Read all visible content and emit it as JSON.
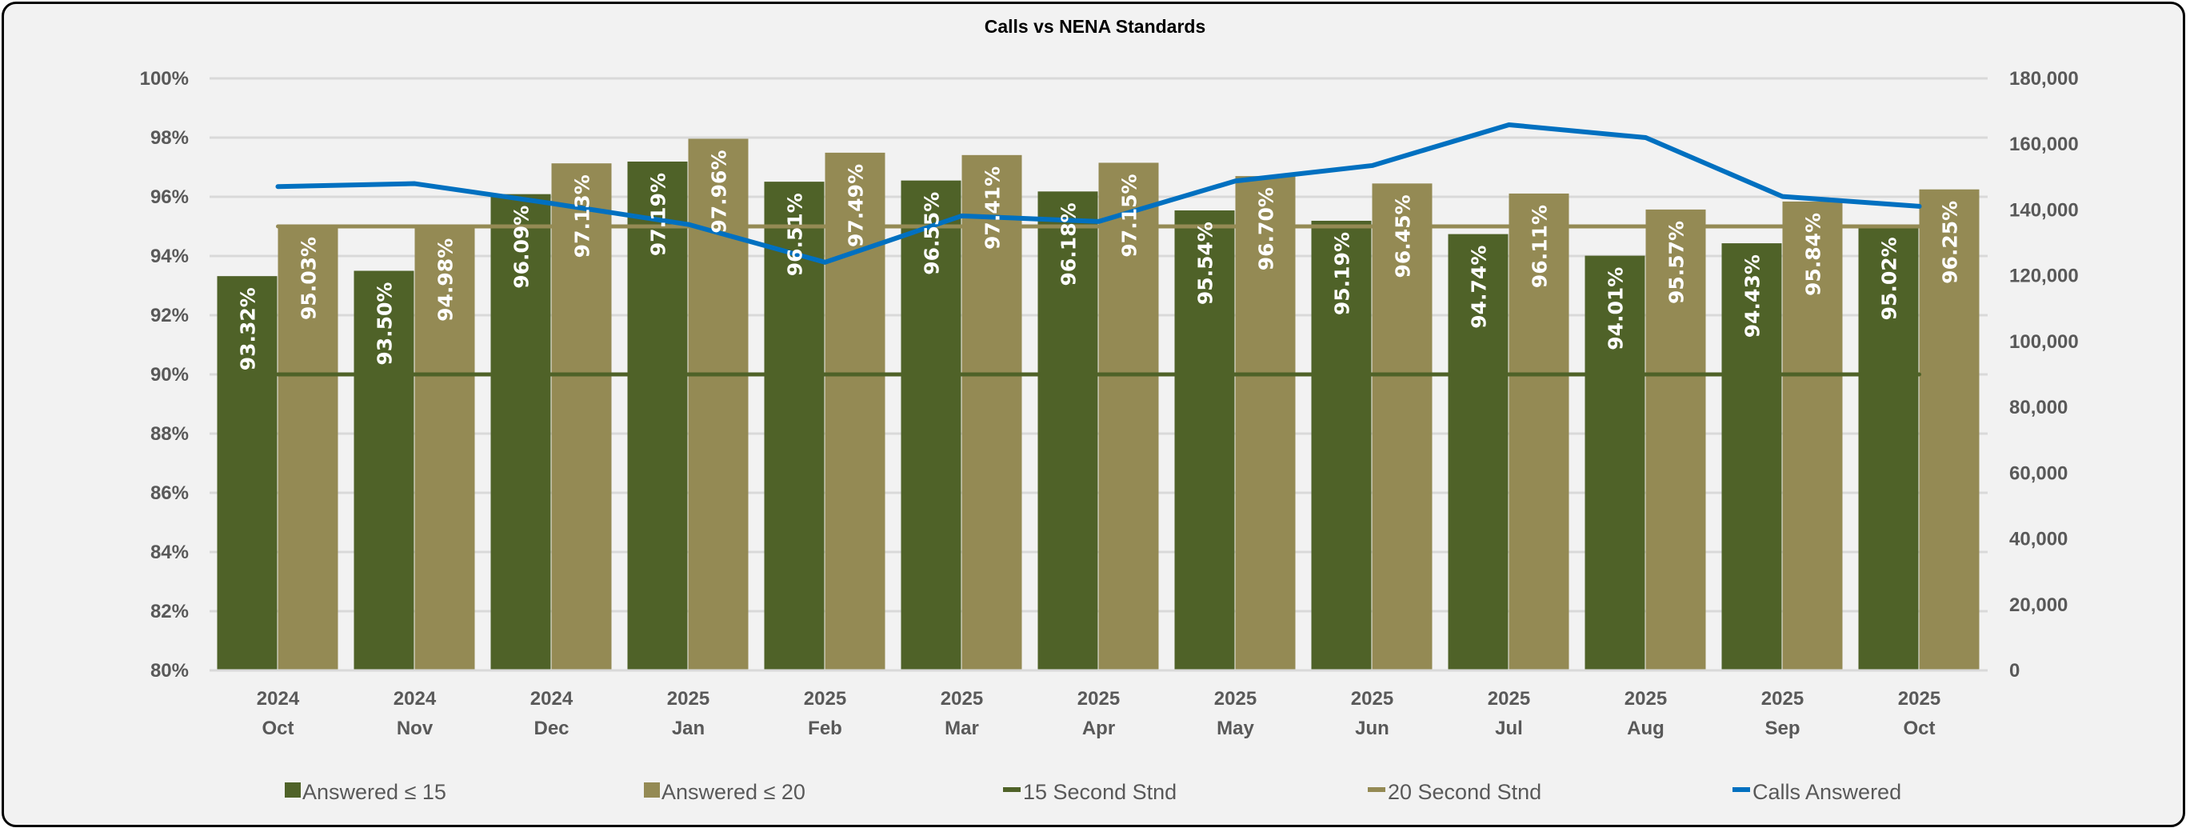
{
  "chart_data": {
    "type": "bar",
    "title": "Calls vs NENA Standards",
    "categories": [
      [
        "2024",
        "Oct"
      ],
      [
        "2024",
        "Nov"
      ],
      [
        "2024",
        "Dec"
      ],
      [
        "2025",
        "Jan"
      ],
      [
        "2025",
        "Feb"
      ],
      [
        "2025",
        "Mar"
      ],
      [
        "2025",
        "Apr"
      ],
      [
        "2025",
        "May"
      ],
      [
        "2025",
        "Jun"
      ],
      [
        "2025",
        "Jul"
      ],
      [
        "2025",
        "Aug"
      ],
      [
        "2025",
        "Sep"
      ],
      [
        "2025",
        "Oct"
      ]
    ],
    "y_left": {
      "min": 80,
      "max": 100,
      "step": 2,
      "tick_labels": [
        "80%",
        "82%",
        "84%",
        "86%",
        "88%",
        "90%",
        "92%",
        "94%",
        "96%",
        "98%",
        "100%"
      ]
    },
    "y_right": {
      "min": 0,
      "max": 180000,
      "step": 20000,
      "tick_labels": [
        "0",
        "20,000",
        "40,000",
        "60,000",
        "80,000",
        "100,000",
        "120,000",
        "140,000",
        "160,000",
        "180,000"
      ]
    },
    "grid": true,
    "legend_position": "bottom",
    "series": [
      {
        "name": "Answered ≤ 15",
        "type": "bar",
        "axis": "left",
        "color": "#4F6228",
        "values": [
          93.32,
          93.5,
          96.09,
          97.19,
          96.51,
          96.55,
          96.18,
          95.54,
          95.19,
          94.74,
          94.01,
          94.43,
          95.02
        ],
        "labels": [
          "93.32%",
          "93.50%",
          "96.09%",
          "97.19%",
          "96.51%",
          "96.55%",
          "96.18%",
          "95.54%",
          "95.19%",
          "94.74%",
          "94.01%",
          "94.43%",
          "95.02%"
        ]
      },
      {
        "name": "Answered ≤ 20",
        "type": "bar",
        "axis": "left",
        "color": "#948A54",
        "values": [
          95.03,
          94.98,
          97.13,
          97.96,
          97.49,
          97.41,
          97.15,
          96.7,
          96.45,
          96.11,
          95.57,
          95.84,
          96.25
        ],
        "labels": [
          "95.03%",
          "94.98%",
          "97.13%",
          "97.96%",
          "97.49%",
          "97.41%",
          "97.15%",
          "96.70%",
          "96.45%",
          "96.11%",
          "95.57%",
          "95.84%",
          "96.25%"
        ]
      },
      {
        "name": "15 Second Stnd",
        "type": "line",
        "axis": "left",
        "color": "#4F6228",
        "values": [
          90,
          90,
          90,
          90,
          90,
          90,
          90,
          90,
          90,
          90,
          90,
          90,
          90
        ]
      },
      {
        "name": "20 Second Stnd",
        "type": "line",
        "axis": "left",
        "color": "#948A54",
        "values": [
          95,
          95,
          95,
          95,
          95,
          95,
          95,
          95,
          95,
          95,
          95,
          95,
          95
        ]
      },
      {
        "name": "Calls Answered",
        "type": "line",
        "axis": "right",
        "color": "#0070C0",
        "values": [
          147100,
          148000,
          142000,
          135600,
          124100,
          138200,
          136500,
          148800,
          153500,
          165900,
          162000,
          144100,
          141100
        ]
      }
    ]
  }
}
